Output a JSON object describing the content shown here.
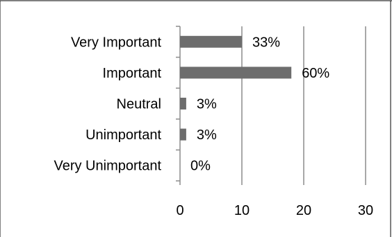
{
  "chart_data": {
    "type": "bar",
    "orientation": "horizontal",
    "categories": [
      "Very Important",
      "Important",
      "Neutral",
      "Unimportant",
      "Very Unimportant"
    ],
    "values": [
      10,
      18,
      1,
      1,
      0
    ],
    "data_labels": [
      "33%",
      "60%",
      "3%",
      "3%",
      "0%"
    ],
    "xlim": [
      0,
      30
    ],
    "xticks": [
      "0",
      "10",
      "20",
      "30"
    ],
    "grid": "vertical",
    "legend": "none",
    "bar_color": "#6d6d6d",
    "grid_color": "#8c8c8c"
  }
}
